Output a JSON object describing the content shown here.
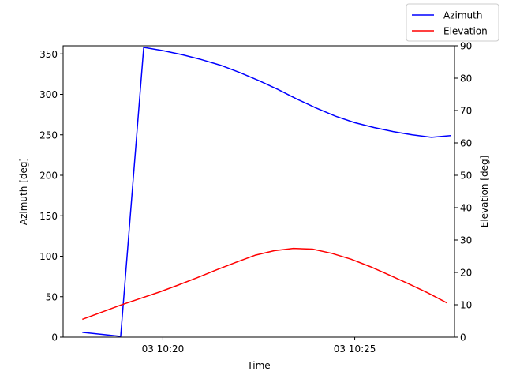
{
  "chart_data": {
    "type": "line",
    "title": "",
    "xlabel": "Time",
    "y_left_label": "Azimuth [deg]",
    "y_right_label": "Elevation [deg]",
    "x_ticks": [
      "03 10:20",
      "03 10:25"
    ],
    "x_tick_minutes": [
      20,
      25
    ],
    "xlim_minutes": [
      17.4,
      27.6
    ],
    "y_left_lim": [
      0,
      360
    ],
    "y_left_ticks": [
      0,
      50,
      100,
      150,
      200,
      250,
      300,
      350
    ],
    "y_right_lim": [
      0,
      90
    ],
    "y_right_ticks": [
      0,
      10,
      20,
      30,
      40,
      50,
      60,
      70,
      80,
      90
    ],
    "grid": false,
    "legend_position": "top-right",
    "colors": {
      "azimuth": "#0000ff",
      "elevation": "#ff0000"
    },
    "series": [
      {
        "name": "Azimuth",
        "axis": "left",
        "x_minutes": [
          17.9,
          18.9,
          19.5,
          20.0,
          20.5,
          21.0,
          21.5,
          22.0,
          22.5,
          23.0,
          23.5,
          24.0,
          24.5,
          25.0,
          25.5,
          26.0,
          26.5,
          27.0,
          27.5
        ],
        "values": [
          6,
          1,
          358,
          354,
          349,
          343,
          336,
          327,
          317,
          306,
          294,
          283,
          273,
          265,
          259,
          254,
          250,
          247,
          249
        ]
      },
      {
        "name": "Elevation",
        "axis": "right",
        "x_minutes": [
          17.9,
          18.4,
          18.9,
          19.4,
          19.9,
          20.4,
          20.9,
          21.4,
          21.9,
          22.4,
          22.9,
          23.4,
          23.9,
          24.4,
          24.9,
          25.4,
          25.9,
          26.4,
          26.9,
          27.4
        ],
        "values": [
          5.5,
          7.7,
          9.9,
          11.9,
          13.9,
          16.1,
          18.4,
          20.8,
          23.1,
          25.3,
          26.7,
          27.4,
          27.2,
          25.9,
          24.1,
          21.8,
          19.2,
          16.5,
          13.7,
          10.6
        ]
      }
    ]
  }
}
